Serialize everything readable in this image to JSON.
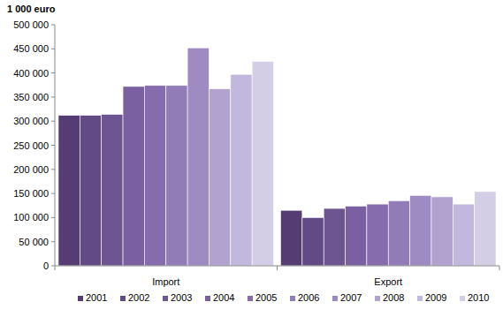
{
  "chart_data": {
    "type": "bar",
    "y_label": "1 000 euro",
    "categories": [
      "Import",
      "Export"
    ],
    "series": [
      {
        "name": "2001",
        "color": "#553d74",
        "values": [
          312000,
          115000
        ]
      },
      {
        "name": "2002",
        "color": "#624a84",
        "values": [
          312000,
          100000
        ]
      },
      {
        "name": "2003",
        "color": "#6d5592",
        "values": [
          314000,
          119000
        ]
      },
      {
        "name": "2004",
        "color": "#7a5fa1",
        "values": [
          372000,
          124000
        ]
      },
      {
        "name": "2005",
        "color": "#866bad",
        "values": [
          374000,
          128000
        ]
      },
      {
        "name": "2006",
        "color": "#927cb8",
        "values": [
          374000,
          135000
        ]
      },
      {
        "name": "2007",
        "color": "#9e8bc2",
        "values": [
          452000,
          146000
        ]
      },
      {
        "name": "2008",
        "color": "#b1a2cf",
        "values": [
          367000,
          143000
        ]
      },
      {
        "name": "2009",
        "color": "#c2b7dc",
        "values": [
          397000,
          128000
        ]
      },
      {
        "name": "2010",
        "color": "#d4cde6",
        "values": [
          424000,
          154000
        ]
      }
    ],
    "ylim": [
      0,
      500000
    ],
    "yticks": [
      0,
      {
        "value": 50000,
        "label": "50 000"
      },
      {
        "value": 100000,
        "label": "100 000"
      },
      {
        "value": 150000,
        "label": "150 000"
      },
      {
        "value": 200000,
        "label": "200 000"
      },
      {
        "value": 250000,
        "label": "250 000"
      },
      {
        "value": 300000,
        "label": "300 000"
      },
      {
        "value": 350000,
        "label": "350 000"
      },
      {
        "value": 400000,
        "label": "400 000"
      },
      {
        "value": 450000,
        "label": "450 000"
      },
      {
        "value": 500000,
        "label": "500 000"
      }
    ],
    "grid": false,
    "legend": "bottom"
  }
}
